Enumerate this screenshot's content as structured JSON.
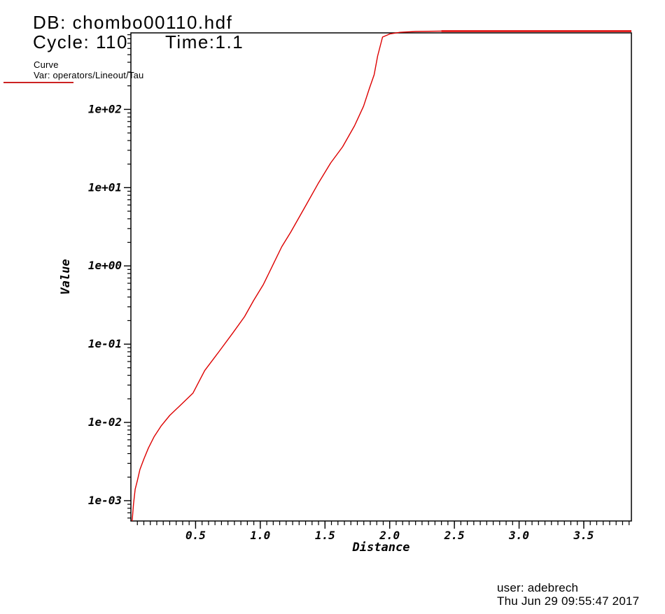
{
  "header": {
    "db_title": "DB: chombo00110.hdf",
    "cycle_label": "Cycle: 110",
    "time_label": "Time:1.1"
  },
  "legend": {
    "plot_type": "Curve",
    "var_label": "Var: operators/Lineout/Tau",
    "swatch_color": "#cc2222"
  },
  "footer": {
    "user_line": "user: adebrech",
    "timestamp_line": "Thu Jun 29 09:55:47 2017"
  },
  "colors": {
    "curve": "#dd0000",
    "axis": "#000000",
    "background": "#ffffff"
  },
  "chart_data": {
    "type": "line",
    "title": "",
    "xlabel": "Distance",
    "ylabel": "Value",
    "xscale": "linear",
    "yscale": "log",
    "grid": false,
    "legend_position": "top-left",
    "xlim": [
      0,
      3.868
    ],
    "ylim": [
      0.00055,
      950
    ],
    "x_major_ticks": [
      0.5,
      1.0,
      1.5,
      2.0,
      2.5,
      3.0,
      3.5
    ],
    "x_major_tick_labels": [
      "0.5",
      "1.0",
      "1.5",
      "2.0",
      "2.5",
      "3.0",
      "3.5"
    ],
    "x_minor_tick_step": 0.05,
    "y_major_ticks": [
      0.001,
      0.01,
      0.1,
      1,
      10,
      100
    ],
    "y_major_tick_labels": [
      "1e-03",
      "1e-02",
      "1e-01",
      "1e+00",
      "1e+01",
      "1e+02"
    ],
    "y_minor_ticks": "log-decade-2-to-9",
    "series": [
      {
        "name": "operators/Lineout/Tau",
        "color": "#dd0000",
        "points": [
          [
            0.01,
            0.00055
          ],
          [
            0.02,
            0.0009
          ],
          [
            0.033,
            0.0014
          ],
          [
            0.05,
            0.0018
          ],
          [
            0.07,
            0.0025
          ],
          [
            0.1,
            0.0034
          ],
          [
            0.135,
            0.0047
          ],
          [
            0.18,
            0.0066
          ],
          [
            0.233,
            0.009
          ],
          [
            0.3,
            0.0123
          ],
          [
            0.38,
            0.0164
          ],
          [
            0.48,
            0.0237
          ],
          [
            0.57,
            0.046
          ],
          [
            0.68,
            0.08
          ],
          [
            0.785,
            0.137
          ],
          [
            0.878,
            0.224
          ],
          [
            0.948,
            0.36
          ],
          [
            1.024,
            0.58
          ],
          [
            1.094,
            1.0
          ],
          [
            1.165,
            1.75
          ],
          [
            1.235,
            2.7
          ],
          [
            1.354,
            6.0
          ],
          [
            1.446,
            11.2
          ],
          [
            1.544,
            20.7
          ],
          [
            1.636,
            33.2
          ],
          [
            1.728,
            61.6
          ],
          [
            1.798,
            110
          ],
          [
            1.842,
            183
          ],
          [
            1.88,
            277
          ],
          [
            1.907,
            482
          ],
          [
            1.945,
            840
          ],
          [
            2.0,
            920
          ],
          [
            2.08,
            965
          ],
          [
            2.2,
            990
          ],
          [
            2.4,
            1000
          ],
          [
            3.868,
            1000
          ]
        ]
      }
    ]
  }
}
